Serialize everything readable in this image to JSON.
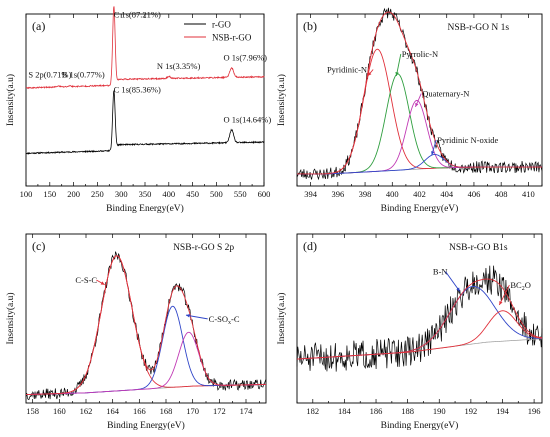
{
  "chart_data": [
    {
      "id": "a",
      "panel_label": "(a)",
      "type": "line",
      "xlabel": "Binding Energy(eV)",
      "ylabel": "Insensity(a.u)",
      "xlim": [
        100,
        600
      ],
      "xticks": [
        100,
        150,
        200,
        250,
        300,
        350,
        400,
        450,
        500,
        550,
        600
      ],
      "ylim": [
        0,
        100
      ],
      "legend": {
        "position": "top-right",
        "entries": [
          "r-GO",
          "NSB-r-GO"
        ]
      },
      "series": [
        {
          "name": "r-GO",
          "color": "#000000",
          "peaks": [
            {
              "x": 284.6,
              "y": 34,
              "w": 2.6
            },
            {
              "x": 532,
              "y": 7.5,
              "w": 4
            }
          ],
          "baseline": [
            [
              100,
              19
            ],
            [
              280,
              20.5
            ],
            [
              295,
              24
            ],
            [
              600,
              25.5
            ]
          ],
          "noise": 0.35
        },
        {
          "name": "NSB-r-GO",
          "color": "#e0313b",
          "peaks": [
            {
              "x": 284.6,
              "y": 45,
              "w": 2.6
            },
            {
              "x": 400,
              "y": 1.3,
              "w": 3
            },
            {
              "x": 532,
              "y": 5.5,
              "w": 4
            },
            {
              "x": 192,
              "y": 0.5,
              "w": 3
            },
            {
              "x": 168,
              "y": 0.6,
              "w": 3
            }
          ],
          "baseline": [
            [
              100,
              57
            ],
            [
              280,
              58.5
            ],
            [
              295,
              62
            ],
            [
              600,
              63.5
            ]
          ],
          "noise": 0.35
        }
      ],
      "annotations": [
        {
          "text": "C 1s(87.21%)",
          "x": 284,
          "y": 98,
          "anchor": "start"
        },
        {
          "text": "S 2p(0.71%)",
          "x": 105,
          "y": 63,
          "anchor": "start"
        },
        {
          "text": "B 1s(0.77%)",
          "x": 175,
          "y": 63,
          "anchor": "start"
        },
        {
          "text": "N 1s(3.35%)",
          "x": 375,
          "y": 68,
          "anchor": "start"
        },
        {
          "text": "O 1s(7.96%)",
          "x": 515,
          "y": 73,
          "anchor": "start"
        },
        {
          "text": "C 1s(85.36%)",
          "x": 284,
          "y": 54.5,
          "anchor": "start"
        },
        {
          "text": "O 1s(14.64%)",
          "x": 515,
          "y": 37,
          "anchor": "start"
        }
      ]
    },
    {
      "id": "b",
      "panel_label": "(b)",
      "title": "NSB-r-GO   N 1s",
      "type": "line",
      "xlabel": "Binding Energy(eV)",
      "ylabel": "Insensity(a.u)",
      "xlim": [
        393,
        411
      ],
      "xticks": [
        394,
        396,
        398,
        400,
        402,
        404,
        406,
        408,
        410
      ],
      "ylim": [
        0,
        100
      ],
      "baseline": [
        [
          393,
          7
        ],
        [
          395,
          7
        ],
        [
          396.5,
          7.5
        ],
        [
          403.5,
          10.5
        ],
        [
          406,
          11
        ],
        [
          411,
          11
        ]
      ],
      "components": [
        {
          "name": "Pyridinic-N",
          "center": 398.9,
          "amp": 71,
          "sigma": 1.0,
          "color": "#e0313b"
        },
        {
          "name": "Pyrrolic-N",
          "center": 400.4,
          "amp": 56,
          "sigma": 0.85,
          "color": "#2f9e3f"
        },
        {
          "name": "Quaternary-N",
          "center": 401.8,
          "amp": 40,
          "sigma": 0.75,
          "color": "#c13ab5"
        },
        {
          "name": "Pyridinic N-oxide",
          "center": 403.1,
          "amp": 8,
          "sigma": 0.7,
          "color": "#3046c8"
        }
      ],
      "envelope_color": "#e0313b",
      "noise": 3.5,
      "annotations": [
        {
          "text": "Pyridinic-N",
          "x": 395.2,
          "y": 66,
          "anchor": "start",
          "arrow_to": [
            398.2,
            64
          ],
          "arrow_color": "#e0313b"
        },
        {
          "text": "Pyrrolic-N",
          "x": 400.7,
          "y": 75,
          "anchor": "start",
          "arrow_to": [
            400.3,
            64
          ],
          "arrow_color": "#2f9e3f"
        },
        {
          "text": "Quaternary-N",
          "x": 402.2,
          "y": 52,
          "anchor": "start",
          "arrow_to": [
            401.7,
            46
          ],
          "arrow_color": "#c13ab5"
        },
        {
          "text": "Pyridinic N-oxide",
          "x": 403.3,
          "y": 25,
          "anchor": "start",
          "arrow_to": [
            402.9,
            18
          ],
          "arrow_color": "#3046c8"
        }
      ]
    },
    {
      "id": "c",
      "panel_label": "(c)",
      "title": "NSB-r-GO   S 2p",
      "type": "line",
      "xlabel": "Binding Energy(eV)",
      "ylabel": "Insensity(a.u)",
      "xlim": [
        157.5,
        175.5
      ],
      "xticks": [
        158,
        160,
        162,
        164,
        166,
        168,
        170,
        172,
        174
      ],
      "ylim": [
        0,
        100
      ],
      "baseline": [
        [
          157.5,
          5
        ],
        [
          162,
          6
        ],
        [
          166,
          8
        ],
        [
          170,
          10
        ],
        [
          175.5,
          11
        ]
      ],
      "components": [
        {
          "name": "C-S-C",
          "center": 164.3,
          "amp": 80,
          "sigma": 1.15,
          "color": "#e0313b"
        },
        {
          "name": "C-SOx-C",
          "center": 168.5,
          "amp": 48,
          "sigma": 0.75,
          "color": "#3046c8"
        },
        {
          "name": "C-SOx-C (2)",
          "center": 169.7,
          "amp": 32,
          "sigma": 0.75,
          "color": "#c13ab5"
        }
      ],
      "envelope_color": "#e0313b",
      "noise": 3.2,
      "annotations": [
        {
          "text": "C-S-C",
          "x": 161.2,
          "y": 71,
          "anchor": "start",
          "arrow_to": [
            163.4,
            70
          ],
          "arrow_color": "#e0313b"
        },
        {
          "text": "C-SOx-C",
          "x": 171.2,
          "y": 48,
          "anchor": "start",
          "arrow_to": [
            169.5,
            52
          ],
          "arrow_color": "#3046c8"
        }
      ]
    },
    {
      "id": "d",
      "panel_label": "(d)",
      "title": "NSB-r-GO   B1s",
      "type": "line",
      "xlabel": "Binding Energy(eV)",
      "ylabel": "Insensity(a.u)",
      "xlim": [
        181,
        196.5
      ],
      "xticks": [
        182,
        184,
        186,
        188,
        190,
        192,
        194,
        196
      ],
      "ylim": [
        0,
        100
      ],
      "baseline": [
        [
          181,
          26
        ],
        [
          188,
          30
        ],
        [
          193,
          36
        ],
        [
          196.5,
          38
        ]
      ],
      "components": [
        {
          "name": "B-N",
          "center": 192.1,
          "amp": 34,
          "sigma": 1.4,
          "color": "#3046c8"
        },
        {
          "name": "BC2O",
          "center": 194.0,
          "amp": 18,
          "sigma": 0.9,
          "color": "#e0313b"
        }
      ],
      "envelope_color": "#e0313b",
      "noise": 9,
      "annotations": [
        {
          "text": "B-N",
          "x": 189.6,
          "y": 76,
          "anchor": "start",
          "arrow_to": [
            191.3,
            66
          ],
          "arrow_color": "#3046c8"
        },
        {
          "text": "BC2O",
          "x": 194.5,
          "y": 68,
          "anchor": "start",
          "arrow_to": [
            193.8,
            58
          ],
          "arrow_color": "#e0313b"
        }
      ]
    }
  ]
}
